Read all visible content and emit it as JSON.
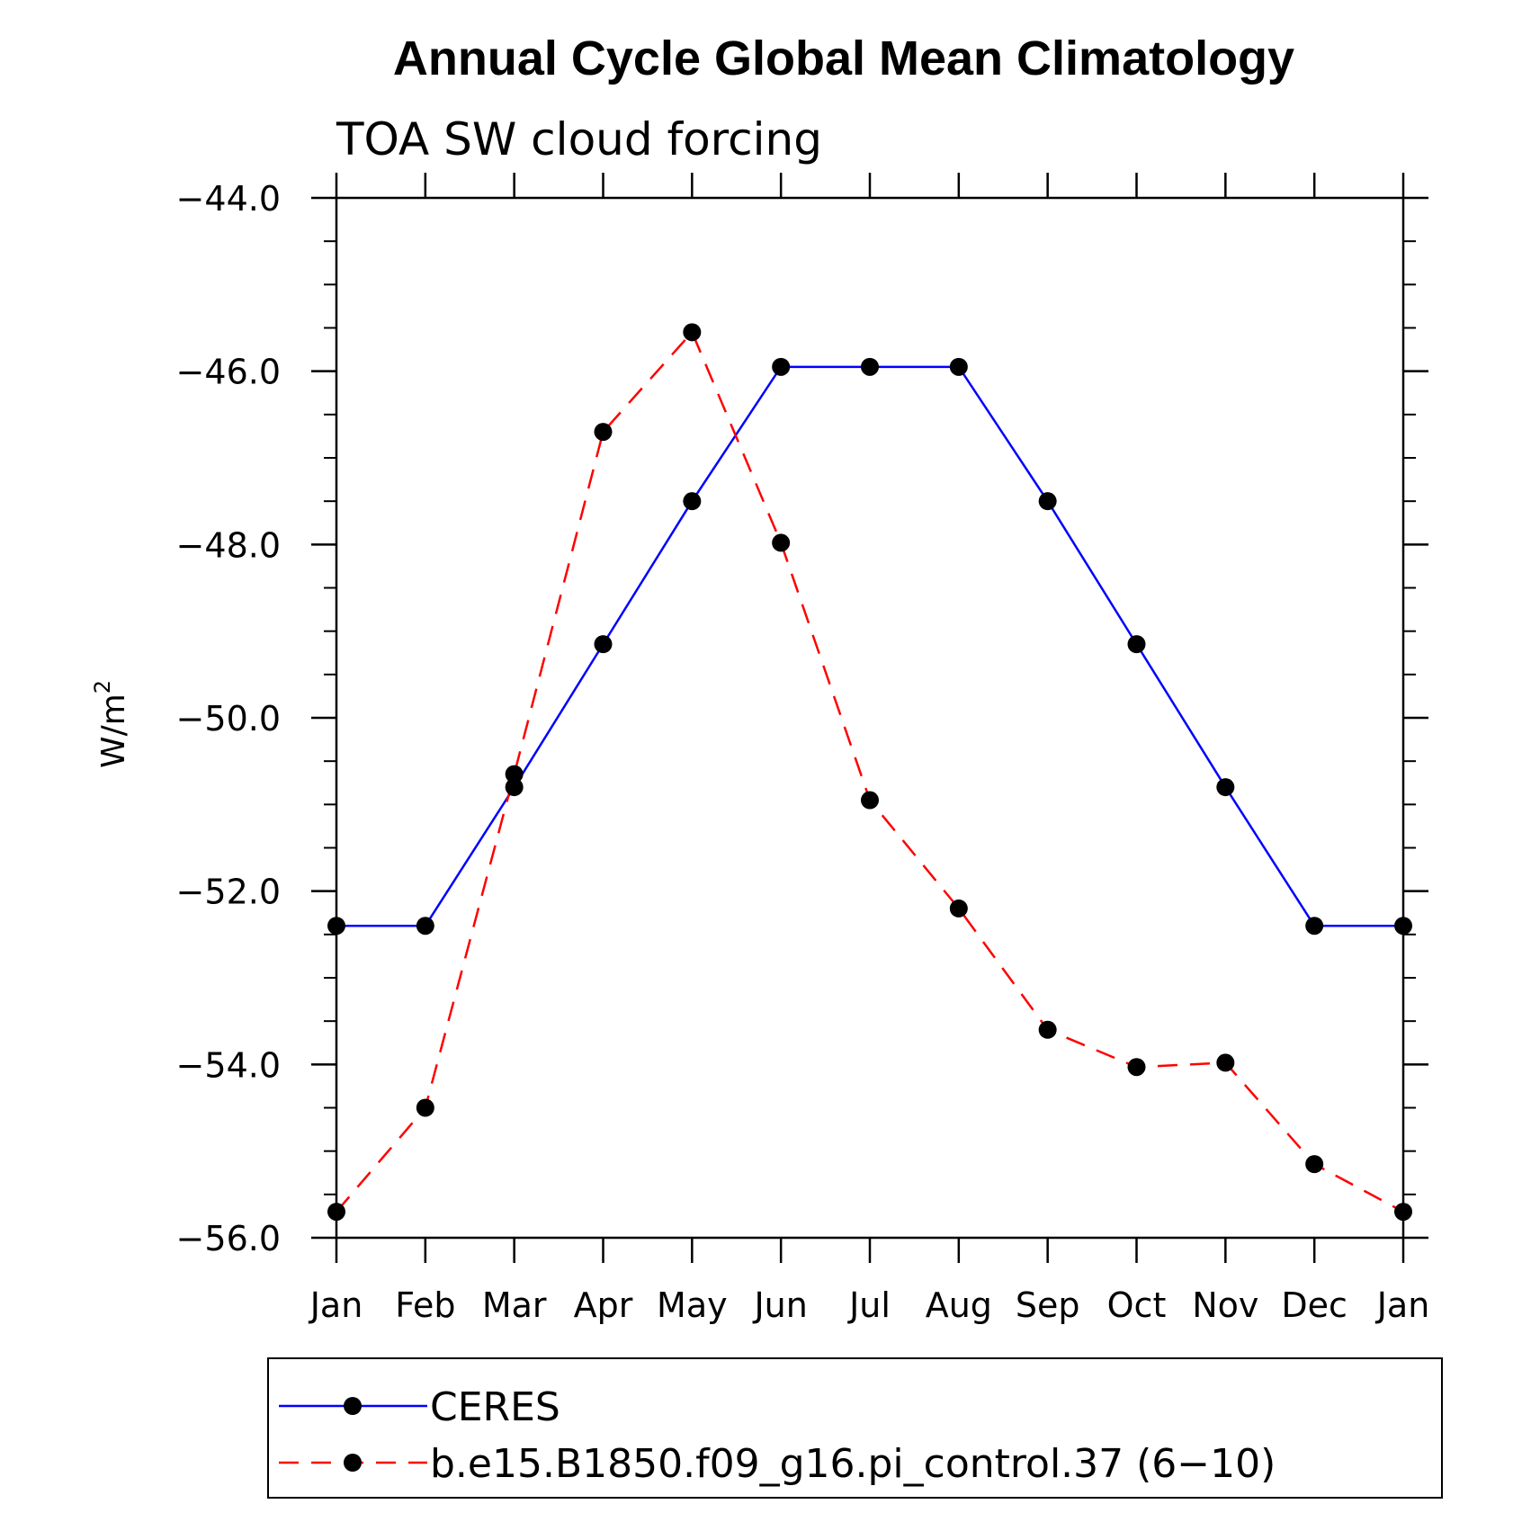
{
  "chart_data": {
    "type": "line",
    "title": "Annual Cycle Global Mean Climatology",
    "subtitle": "TOA SW cloud forcing",
    "xlabel": "",
    "ylabel": "W/m",
    "ylabel_superscript": "2",
    "categories": [
      "Jan",
      "Feb",
      "Mar",
      "Apr",
      "May",
      "Jun",
      "Jul",
      "Aug",
      "Sep",
      "Oct",
      "Nov",
      "Dec",
      "Jan"
    ],
    "ylim": [
      -56.0,
      -44.0
    ],
    "yticks": [
      -44.0,
      -46.0,
      -48.0,
      -50.0,
      -52.0,
      -54.0,
      -56.0
    ],
    "ytick_labels": [
      "−44.0",
      "−46.0",
      "−48.0",
      "−50.0",
      "−52.0",
      "−54.0",
      "−56.0"
    ],
    "grid": false,
    "legend_position": "bottom",
    "series": [
      {
        "name": "CERES",
        "color": "#0000ff",
        "dash": "solid",
        "marker": "filled-circle",
        "values": [
          -52.4,
          -52.4,
          -50.8,
          -49.15,
          -47.5,
          -45.95,
          -45.95,
          -45.95,
          -47.5,
          -49.15,
          -50.8,
          -52.4,
          -52.4
        ]
      },
      {
        "name": "b.e15.B1850.f09_g16.pi_control.37 (6−10)",
        "color": "#ff0000",
        "dash": "dashed",
        "marker": "filled-circle",
        "values": [
          -55.7,
          -54.5,
          -50.65,
          -46.7,
          -45.55,
          -47.98,
          -50.95,
          -52.2,
          -53.6,
          -54.03,
          -53.98,
          -55.15,
          -55.7
        ]
      }
    ]
  }
}
